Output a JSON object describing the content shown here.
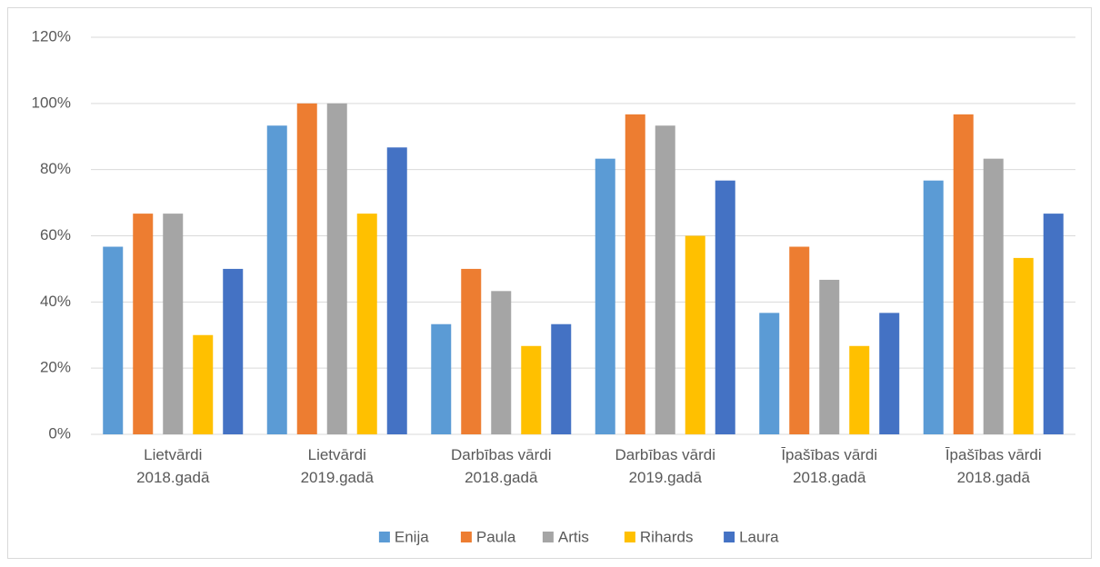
{
  "chart_data": {
    "type": "bar",
    "categories": [
      "Lietvārdi\n2018.gadā",
      "Lietvārdi\n2019.gadā",
      "Darbības vārdi\n2018.gadā",
      "Darbības vārdi\n2019.gadā",
      "Īpašības vārdi\n2018.gadā",
      "Īpašības vārdi\n2018.gadā"
    ],
    "series": [
      {
        "name": "Enija",
        "color": "#5b9bd5",
        "values": [
          56.7,
          93.3,
          33.3,
          83.3,
          36.7,
          76.7
        ]
      },
      {
        "name": "Paula",
        "color": "#ed7d31",
        "values": [
          66.7,
          100,
          50,
          96.7,
          56.7,
          96.7
        ]
      },
      {
        "name": "Artis",
        "color": "#a5a5a5",
        "values": [
          66.7,
          100,
          43.3,
          93.3,
          46.7,
          83.3
        ]
      },
      {
        "name": "Rihards",
        "color": "#ffc000",
        "values": [
          30,
          66.7,
          26.7,
          60,
          26.7,
          53.3
        ]
      },
      {
        "name": "Laura",
        "color": "#4472c4",
        "values": [
          50,
          86.7,
          33.3,
          76.7,
          36.7,
          66.7
        ]
      }
    ],
    "ylim": [
      0,
      120
    ],
    "yticks": [
      {
        "value": 0,
        "label": "0%"
      },
      {
        "value": 20,
        "label": "20%"
      },
      {
        "value": 40,
        "label": "40%"
      },
      {
        "value": 60,
        "label": "60%"
      },
      {
        "value": 80,
        "label": "80%"
      },
      {
        "value": 100,
        "label": "100%"
      },
      {
        "value": 120,
        "label": "120%"
      }
    ],
    "grid": true,
    "legend": "bottom"
  }
}
